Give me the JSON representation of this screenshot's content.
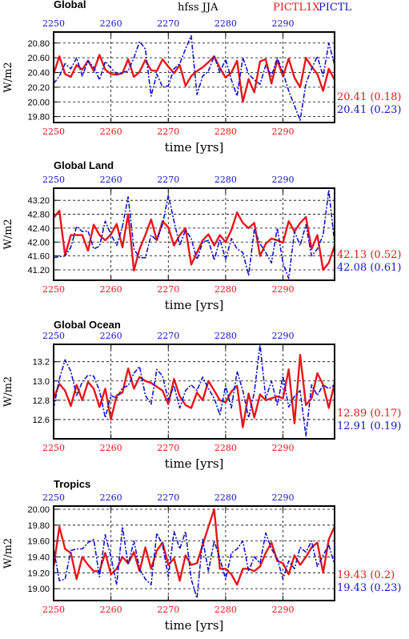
{
  "header": {
    "title": "hfss JJA",
    "legend_red": "PICTL1X",
    "legend_blue": "PICTL"
  },
  "colors": {
    "red": "#e8161c",
    "blue": "#1414c8",
    "grid": "#000000"
  },
  "chart_data": [
    {
      "type": "line",
      "title": "Global",
      "xlabel": "time [yrs]",
      "ylabel": "W/m2",
      "xlim": [
        2250,
        2299
      ],
      "ylim": [
        19.72,
        20.95
      ],
      "xticks": [
        2250,
        2260,
        2270,
        2280,
        2290
      ],
      "yticks": [
        19.8,
        20.0,
        20.2,
        20.4,
        20.6,
        20.8
      ],
      "ytick_labels": [
        "19.80",
        "20.00",
        "20.20",
        "20.40",
        "20.60",
        "20.80"
      ],
      "grid": true,
      "stats": [
        {
          "label": "20.41 (0.18)",
          "series": "PICTL1X"
        },
        {
          "label": "20.41 (0.23)",
          "series": "PICTL"
        }
      ],
      "series": [
        {
          "name": "PICTL1X",
          "color": "red",
          "dash": false,
          "x_start": 2250,
          "values": [
            20.38,
            20.62,
            20.38,
            20.34,
            20.5,
            20.44,
            20.56,
            20.42,
            20.64,
            20.44,
            20.38,
            20.37,
            20.39,
            20.58,
            20.34,
            20.41,
            20.57,
            20.43,
            20.42,
            20.58,
            20.48,
            20.39,
            20.5,
            20.22,
            20.35,
            20.42,
            20.47,
            20.54,
            20.62,
            20.46,
            20.33,
            20.4,
            20.56,
            20.0,
            20.31,
            20.13,
            20.55,
            20.58,
            20.25,
            20.57,
            20.35,
            20.59,
            20.33,
            20.2,
            20.6,
            20.48,
            20.38,
            20.15,
            20.45,
            20.3
          ]
        },
        {
          "name": "PICTL",
          "color": "blue",
          "dash": true,
          "x_start": 2250,
          "values": [
            20.25,
            20.35,
            20.52,
            20.45,
            20.6,
            20.35,
            20.56,
            20.47,
            20.3,
            20.55,
            20.46,
            20.38,
            20.4,
            20.42,
            20.6,
            20.82,
            20.72,
            20.08,
            20.38,
            20.2,
            20.22,
            20.45,
            20.52,
            20.72,
            20.9,
            20.1,
            20.35,
            20.42,
            20.62,
            20.4,
            20.58,
            20.3,
            20.08,
            20.6,
            20.38,
            20.3,
            20.24,
            20.5,
            20.35,
            20.6,
            20.4,
            20.15,
            19.95,
            19.75,
            20.25,
            20.45,
            20.62,
            20.35,
            20.8,
            20.5
          ]
        }
      ]
    },
    {
      "type": "line",
      "title": "Global Land",
      "xlabel": "time [yrs]",
      "ylabel": "W/m2",
      "xlim": [
        2250,
        2299
      ],
      "ylim": [
        40.9,
        43.55
      ],
      "xticks": [
        2250,
        2260,
        2270,
        2280,
        2290
      ],
      "yticks": [
        41.2,
        41.6,
        42.0,
        42.4,
        42.8,
        43.2
      ],
      "ytick_labels": [
        "41.20",
        "41.60",
        "42.00",
        "42.40",
        "42.80",
        "43.20"
      ],
      "grid": true,
      "stats": [
        {
          "label": "42.13 (0.52)",
          "series": "PICTL1X"
        },
        {
          "label": "42.08 (0.61)",
          "series": "PICTL"
        }
      ],
      "series": [
        {
          "name": "PICTL1X",
          "color": "red",
          "dash": false,
          "x_start": 2250,
          "values": [
            42.7,
            42.9,
            41.62,
            42.2,
            42.2,
            42.2,
            41.75,
            42.5,
            42.2,
            42.05,
            42.22,
            42.52,
            41.85,
            42.8,
            41.18,
            41.8,
            42.2,
            42.65,
            42.05,
            42.6,
            42.42,
            41.9,
            42.2,
            42.4,
            41.35,
            41.7,
            42.05,
            42.22,
            41.9,
            42.2,
            42.0,
            42.35,
            42.85,
            42.55,
            42.4,
            42.55,
            41.6,
            41.95,
            42.1,
            42.05,
            41.98,
            42.6,
            42.3,
            42.55,
            42.72,
            41.8,
            42.2,
            41.2,
            41.4,
            41.9
          ]
        },
        {
          "name": "PICTL",
          "color": "blue",
          "dash": true,
          "x_start": 2250,
          "values": [
            41.55,
            41.58,
            41.6,
            41.85,
            42.45,
            42.3,
            42.32,
            41.8,
            41.88,
            42.6,
            42.22,
            41.9,
            42.45,
            43.3,
            41.8,
            41.55,
            41.55,
            42.2,
            42.05,
            42.5,
            43.35,
            42.6,
            41.9,
            42.35,
            42.1,
            41.5,
            42.0,
            42.05,
            41.48,
            42.08,
            41.5,
            42.1,
            41.8,
            41.7,
            41.05,
            42.35,
            41.95,
            41.7,
            41.4,
            42.4,
            41.4,
            40.95,
            42.3,
            41.9,
            42.5,
            41.6,
            41.8,
            42.2,
            43.5,
            41.95
          ]
        }
      ]
    },
    {
      "type": "line",
      "title": "Global Ocean",
      "xlabel": "time [yrs]",
      "ylabel": "W/m2",
      "xlim": [
        2250,
        2299
      ],
      "ylim": [
        12.4,
        13.38
      ],
      "xticks": [
        2250,
        2260,
        2270,
        2280,
        2290
      ],
      "yticks": [
        12.6,
        12.8,
        13.0,
        13.2
      ],
      "ytick_labels": [
        "12.6",
        "12.8",
        "13.0",
        "13.2"
      ],
      "grid": true,
      "stats": [
        {
          "label": "12.89 (0.17)",
          "series": "PICTL1X"
        },
        {
          "label": "12.91 (0.19)",
          "series": "PICTL"
        }
      ],
      "series": [
        {
          "name": "PICTL1X",
          "color": "red",
          "dash": false,
          "x_start": 2250,
          "values": [
            12.82,
            12.97,
            12.9,
            12.74,
            12.96,
            12.8,
            12.99,
            12.92,
            12.73,
            12.92,
            12.6,
            12.85,
            12.88,
            13.13,
            12.92,
            13.04,
            13.0,
            12.98,
            12.94,
            12.9,
            12.76,
            13.02,
            12.84,
            12.75,
            12.72,
            12.88,
            12.8,
            13.0,
            12.9,
            12.8,
            12.78,
            12.89,
            12.95,
            12.52,
            12.87,
            12.62,
            12.86,
            12.8,
            12.82,
            12.84,
            12.82,
            13.12,
            12.56,
            13.27,
            12.75,
            12.82,
            13.08,
            12.96,
            12.72,
            12.98
          ]
        },
        {
          "name": "PICTL",
          "color": "blue",
          "dash": true,
          "x_start": 2250,
          "values": [
            12.72,
            13.02,
            13.22,
            13.1,
            12.85,
            12.99,
            13.06,
            13.05,
            12.9,
            12.62,
            12.85,
            12.82,
            12.93,
            12.95,
            13.08,
            13.15,
            12.85,
            12.76,
            13.12,
            13.05,
            12.8,
            12.95,
            12.72,
            12.9,
            12.96,
            12.9,
            13.04,
            12.92,
            12.82,
            12.65,
            12.95,
            12.72,
            13.1,
            12.9,
            12.62,
            12.88,
            13.38,
            12.82,
            13.0,
            12.75,
            13.05,
            12.73,
            12.84,
            12.9,
            12.43,
            12.96,
            12.85,
            12.96,
            12.92,
            12.96
          ]
        }
      ]
    },
    {
      "type": "line",
      "title": "Tropics",
      "xlabel": "time [yrs]",
      "ylabel": "W/m2",
      "xlim": [
        2250,
        2299
      ],
      "ylim": [
        18.85,
        20.04
      ],
      "xticks": [
        2250,
        2260,
        2270,
        2280,
        2290
      ],
      "yticks": [
        19.0,
        19.2,
        19.4,
        19.6,
        19.8,
        20.0
      ],
      "ytick_labels": [
        "19.00",
        "19.20",
        "19.40",
        "19.60",
        "19.80",
        "20.00"
      ],
      "grid": true,
      "stats": [
        {
          "label": "19.43 (0.2)",
          "series": "PICTL1X"
        },
        {
          "label": "19.43 (0.23)",
          "series": "PICTL"
        }
      ],
      "series": [
        {
          "name": "PICTL1X",
          "color": "red",
          "dash": false,
          "x_start": 2250,
          "values": [
            19.28,
            19.78,
            19.5,
            19.45,
            19.12,
            19.4,
            19.3,
            19.22,
            19.22,
            19.45,
            19.18,
            19.25,
            19.4,
            19.32,
            19.46,
            19.22,
            19.52,
            19.25,
            19.48,
            19.58,
            19.3,
            19.38,
            19.1,
            19.42,
            19.3,
            19.32,
            19.55,
            19.78,
            20.0,
            19.25,
            19.25,
            19.18,
            19.05,
            19.25,
            19.25,
            19.22,
            19.28,
            19.45,
            19.58,
            19.35,
            19.32,
            19.18,
            19.42,
            19.3,
            19.4,
            19.52,
            19.58,
            19.2,
            19.62,
            19.78
          ]
        },
        {
          "name": "PICTL",
          "color": "blue",
          "dash": true,
          "x_start": 2250,
          "values": [
            19.5,
            19.1,
            19.12,
            19.48,
            19.5,
            19.5,
            19.58,
            19.62,
            19.15,
            19.68,
            19.4,
            19.05,
            19.78,
            19.3,
            19.6,
            19.25,
            19.12,
            19.05,
            19.7,
            19.55,
            19.15,
            19.72,
            19.5,
            19.72,
            19.12,
            18.88,
            19.62,
            19.22,
            19.6,
            19.38,
            19.12,
            19.45,
            19.5,
            19.6,
            19.22,
            19.4,
            19.32,
            19.7,
            19.5,
            19.38,
            19.12,
            19.35,
            19.25,
            19.52,
            19.46,
            19.6,
            19.28,
            19.42,
            19.55,
            19.3
          ]
        }
      ]
    }
  ]
}
